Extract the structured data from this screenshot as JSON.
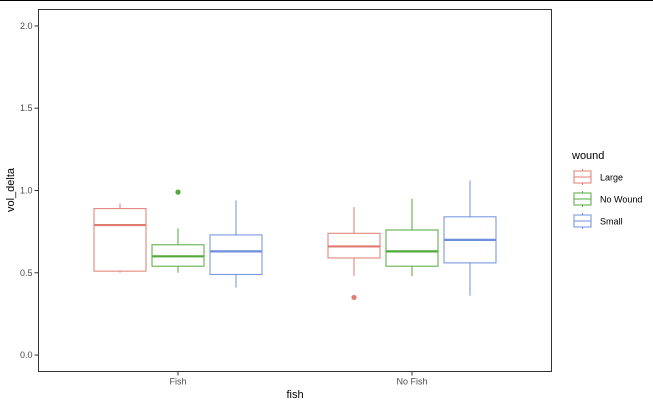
{
  "chart_data": {
    "type": "boxplot",
    "xlabel": "fish",
    "ylabel": "vol_delta",
    "categories": [
      "Fish",
      "No Fish"
    ],
    "ylim": [
      -0.1,
      2.1
    ],
    "yticks": [
      0.0,
      0.5,
      1.0,
      1.5,
      2.0
    ],
    "ytick_labels": [
      "0.0",
      "0.5",
      "1.0",
      "1.5",
      "2.0"
    ],
    "grid": false,
    "legend": {
      "title": "wound",
      "placement": "right",
      "entries": [
        "Large",
        "No Wound",
        "Small"
      ]
    },
    "series": [
      {
        "name": "Large",
        "color": "#E07B72",
        "boxes": [
          {
            "category": "Fish",
            "whisker_low": 0.5,
            "q1": 0.51,
            "median": 0.79,
            "q3": 0.89,
            "whisker_high": 0.92,
            "outliers": []
          },
          {
            "category": "No Fish",
            "whisker_low": 0.48,
            "q1": 0.59,
            "median": 0.66,
            "q3": 0.74,
            "whisker_high": 0.9,
            "outliers": [
              0.35
            ]
          }
        ]
      },
      {
        "name": "No Wound",
        "color": "#53A83C",
        "boxes": [
          {
            "category": "Fish",
            "whisker_low": 0.5,
            "q1": 0.54,
            "median": 0.6,
            "q3": 0.67,
            "whisker_high": 0.77,
            "outliers": [
              0.99
            ]
          },
          {
            "category": "No Fish",
            "whisker_low": 0.48,
            "q1": 0.54,
            "median": 0.63,
            "q3": 0.76,
            "whisker_high": 0.95,
            "outliers": []
          }
        ]
      },
      {
        "name": "Small",
        "color": "#6F8FDD",
        "boxes": [
          {
            "category": "Fish",
            "whisker_low": 0.41,
            "q1": 0.49,
            "median": 0.63,
            "q3": 0.73,
            "whisker_high": 0.94,
            "outliers": []
          },
          {
            "category": "No Fish",
            "whisker_low": 0.36,
            "q1": 0.56,
            "median": 0.7,
            "q3": 0.84,
            "whisker_high": 1.06,
            "outliers": []
          }
        ]
      }
    ]
  }
}
